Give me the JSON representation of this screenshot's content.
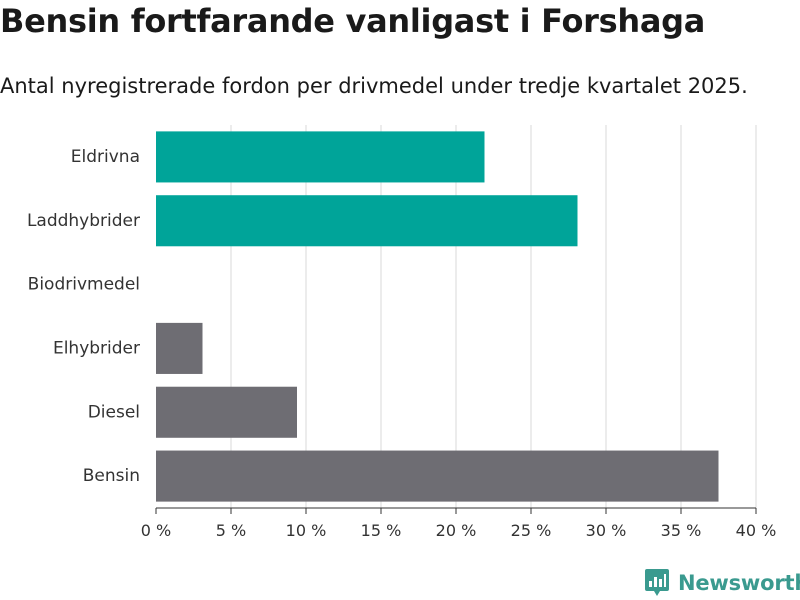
{
  "header": {
    "title": "Bensin fortfarande vanligast i Forshaga",
    "subtitle": "Antal nyregistrerade fordon per drivmedel under tredje kvartalet 2025."
  },
  "brand": {
    "name": "Newsworthy",
    "logo_icon": "bar-chart-speech-bubble-icon",
    "color": "#3a9a8f"
  },
  "colors": {
    "electric": "#00a499",
    "fossil": "#6e6d73",
    "grid": "#d9d9d9",
    "axis": "#333333"
  },
  "chart_data": {
    "type": "bar",
    "orientation": "horizontal",
    "title": "Bensin fortfarande vanligast i Forshaga",
    "subtitle": "Antal nyregistrerade fordon per drivmedel under tredje kvartalet 2025.",
    "categories": [
      "Eldrivna",
      "Laddhybrider",
      "Biodrivmedel",
      "Elhybrider",
      "Diesel",
      "Bensin"
    ],
    "values": [
      21.9,
      28.1,
      0,
      3.1,
      9.4,
      37.5
    ],
    "bar_colors": [
      "#00a499",
      "#00a499",
      "#6e6d73",
      "#6e6d73",
      "#6e6d73",
      "#6e6d73"
    ],
    "xlim": [
      0,
      40
    ],
    "xticks": [
      0,
      5,
      10,
      15,
      20,
      25,
      30,
      35,
      40
    ],
    "tick_suffix": " %",
    "grid": true,
    "xlabel": "",
    "ylabel": ""
  }
}
